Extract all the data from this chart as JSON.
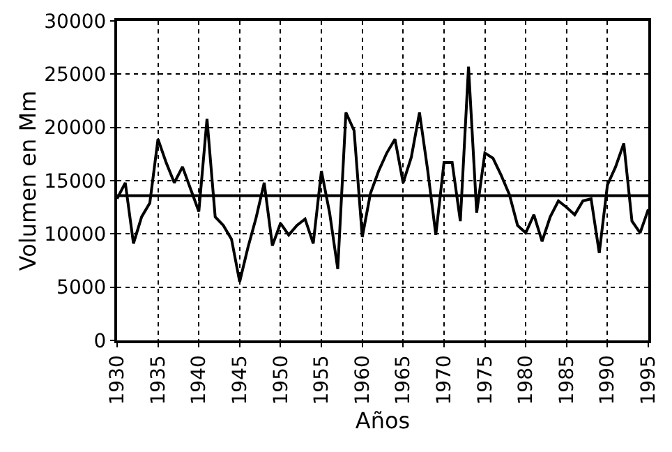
{
  "chart_data": {
    "type": "line",
    "xlabel": "Años",
    "ylabel": "Volumen en Mm",
    "x": [
      1930,
      1931,
      1932,
      1933,
      1934,
      1935,
      1936,
      1937,
      1938,
      1939,
      1940,
      1941,
      1942,
      1943,
      1944,
      1945,
      1946,
      1947,
      1948,
      1949,
      1950,
      1951,
      1952,
      1953,
      1954,
      1955,
      1956,
      1957,
      1958,
      1959,
      1960,
      1961,
      1962,
      1963,
      1964,
      1965,
      1966,
      1967,
      1968,
      1969,
      1970,
      1971,
      1972,
      1973,
      1974,
      1975,
      1976,
      1977,
      1978,
      1979,
      1980,
      1981,
      1982,
      1983,
      1984,
      1985,
      1986,
      1987,
      1988,
      1989,
      1990,
      1991,
      1992,
      1993,
      1994,
      1995
    ],
    "series": [
      {
        "color": "#000000",
        "values": [
          13300,
          14800,
          9100,
          11600,
          12900,
          18900,
          16700,
          14800,
          16300,
          14200,
          12100,
          20800,
          11600,
          10800,
          9500,
          5500,
          8700,
          11500,
          14800,
          8900,
          11000,
          9900,
          10800,
          11400,
          9100,
          15900,
          12000,
          6700,
          21400,
          19700,
          9700,
          13800,
          15900,
          17600,
          18900,
          14800,
          17200,
          21400,
          16000,
          9900,
          16700,
          16700,
          11200,
          25700,
          12000,
          17600,
          17100,
          15500,
          13700,
          10800,
          10100,
          11800,
          9300,
          11600,
          13100,
          12500,
          11800,
          13100,
          13300,
          8200,
          14600,
          16300,
          18500,
          11200,
          10100,
          12300
        ]
      }
    ],
    "xlim": [
      1930,
      1995
    ],
    "xticks": [
      1930,
      1935,
      1940,
      1945,
      1950,
      1955,
      1960,
      1965,
      1970,
      1975,
      1980,
      1985,
      1990,
      1995
    ],
    "ylim": [
      0,
      30000
    ],
    "yticks": [
      0,
      5000,
      10000,
      15000,
      20000,
      25000,
      30000
    ],
    "grid": true,
    "marker": "none",
    "line_style": "solid",
    "ref_lines": [
      {
        "axis": "y",
        "value": 13600,
        "color": "#000000",
        "line_style": "solid"
      }
    ]
  }
}
